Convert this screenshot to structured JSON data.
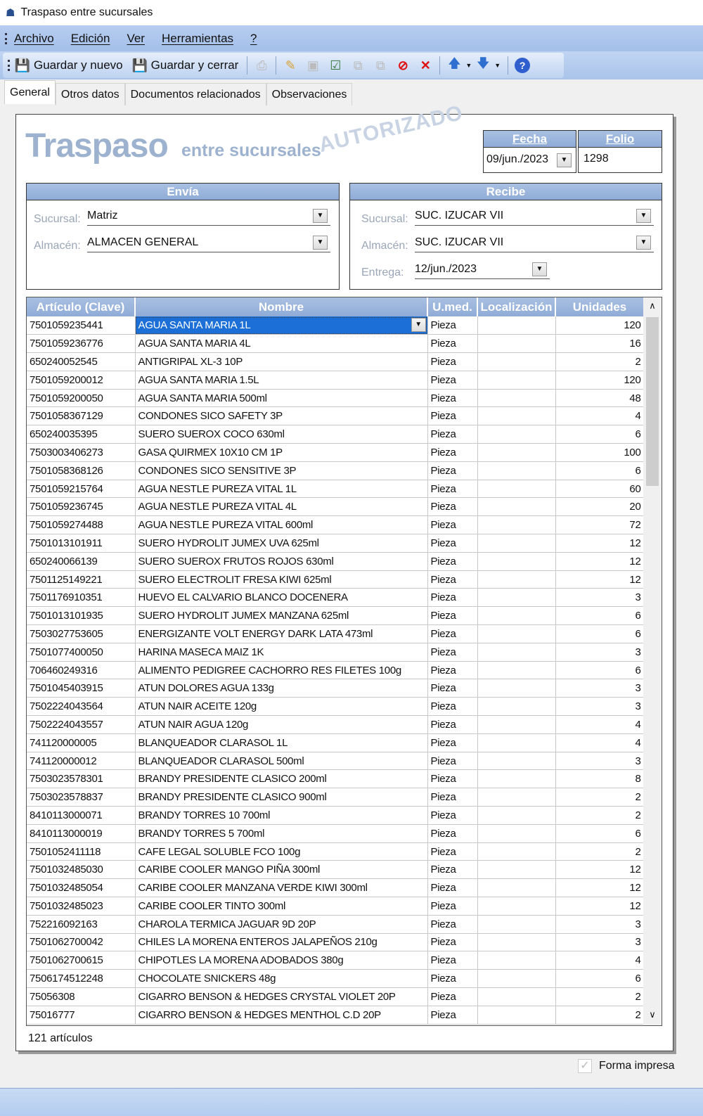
{
  "window": {
    "title": "Traspaso entre sucursales",
    "icon": "house-icon"
  },
  "menu": [
    "Archivo",
    "Edición",
    "Ver",
    "Herramientas",
    "?"
  ],
  "toolbar": {
    "save_new": "Guardar y nuevo",
    "save_close": "Guardar y cerrar"
  },
  "tabs": [
    "General",
    "Otros datos",
    "Documentos relacionados",
    "Observaciones"
  ],
  "header": {
    "title": "Traspaso",
    "subtitle": "entre sucursales",
    "status": "AUTORIZADO",
    "fecha_label": "Fecha",
    "fecha": "09/jun./2023",
    "folio_label": "Folio",
    "folio": "1298"
  },
  "envia": {
    "title": "Envía",
    "sucursal_label": "Sucursal:",
    "sucursal": "Matriz",
    "almacen_label": "Almacén:",
    "almacen": "ALMACEN GENERAL"
  },
  "recibe": {
    "title": "Recibe",
    "sucursal_label": "Sucursal:",
    "sucursal": "SUC. IZUCAR VII",
    "almacen_label": "Almacén:",
    "almacen": "SUC. IZUCAR VII",
    "entrega_label": "Entrega:",
    "entrega": "12/jun./2023"
  },
  "grid": {
    "columns": [
      "Artículo (Clave)",
      "Nombre",
      "U.med.",
      "Localización",
      "Unidades"
    ],
    "rows": [
      [
        "7501059235441",
        "AGUA SANTA MARIA 1L",
        "Pieza",
        "",
        "120"
      ],
      [
        "7501059236776",
        "AGUA SANTA MARIA 4L",
        "Pieza",
        "",
        "16"
      ],
      [
        "650240052545",
        "ANTIGRIPAL XL-3 10P",
        "Pieza",
        "",
        "2"
      ],
      [
        "7501059200012",
        "AGUA SANTA MARIA 1.5L",
        "Pieza",
        "",
        "120"
      ],
      [
        "7501059200050",
        "AGUA SANTA MARIA 500ml",
        "Pieza",
        "",
        "48"
      ],
      [
        "7501058367129",
        "CONDONES SICO SAFETY 3P",
        "Pieza",
        "",
        "4"
      ],
      [
        "650240035395",
        "SUERO SUEROX COCO 630ml",
        "Pieza",
        "",
        "6"
      ],
      [
        "7503003406273",
        "GASA QUIRMEX 10X10 CM 1P",
        "Pieza",
        "",
        "100"
      ],
      [
        "7501058368126",
        "CONDONES SICO SENSITIVE 3P",
        "Pieza",
        "",
        "6"
      ],
      [
        "7501059215764",
        "AGUA NESTLE PUREZA VITAL 1L",
        "Pieza",
        "",
        "60"
      ],
      [
        "7501059236745",
        "AGUA NESTLE PUREZA VITAL 4L",
        "Pieza",
        "",
        "20"
      ],
      [
        "7501059274488",
        "AGUA NESTLE PUREZA VITAL 600ml",
        "Pieza",
        "",
        "72"
      ],
      [
        "7501013101911",
        "SUERO HYDROLIT JUMEX UVA 625ml",
        "Pieza",
        "",
        "12"
      ],
      [
        "650240066139",
        "SUERO SUEROX FRUTOS ROJOS 630ml",
        "Pieza",
        "",
        "12"
      ],
      [
        "7501125149221",
        "SUERO ELECTROLIT FRESA KIWI 625ml",
        "Pieza",
        "",
        "12"
      ],
      [
        "7501176910351",
        "HUEVO EL CALVARIO BLANCO DOCENERA",
        "Pieza",
        "",
        "3"
      ],
      [
        "7501013101935",
        "SUERO HYDROLIT JUMEX MANZANA 625ml",
        "Pieza",
        "",
        "6"
      ],
      [
        "7503027753605",
        "ENERGIZANTE VOLT ENERGY DARK LATA 473ml",
        "Pieza",
        "",
        "6"
      ],
      [
        "7501077400050",
        "HARINA MASECA MAIZ 1K",
        "Pieza",
        "",
        "3"
      ],
      [
        "706460249316",
        "ALIMENTO PEDIGREE CACHORRO RES FILETES 100g",
        "Pieza",
        "",
        "6"
      ],
      [
        "7501045403915",
        "ATUN DOLORES AGUA 133g",
        "Pieza",
        "",
        "3"
      ],
      [
        "7502224043564",
        "ATUN NAIR ACEITE 120g",
        "Pieza",
        "",
        "3"
      ],
      [
        "7502224043557",
        "ATUN NAIR AGUA 120g",
        "Pieza",
        "",
        "4"
      ],
      [
        "741120000005",
        "BLANQUEADOR CLARASOL 1L",
        "Pieza",
        "",
        "4"
      ],
      [
        "741120000012",
        "BLANQUEADOR CLARASOL 500ml",
        "Pieza",
        "",
        "3"
      ],
      [
        "7503023578301",
        "BRANDY PRESIDENTE CLASICO 200ml",
        "Pieza",
        "",
        "8"
      ],
      [
        "7503023578837",
        "BRANDY PRESIDENTE CLASICO 900ml",
        "Pieza",
        "",
        "2"
      ],
      [
        "8410113000071",
        "BRANDY TORRES 10 700ml",
        "Pieza",
        "",
        "2"
      ],
      [
        "8410113000019",
        "BRANDY TORRES 5 700ml",
        "Pieza",
        "",
        "6"
      ],
      [
        "7501052411118",
        "CAFE LEGAL SOLUBLE FCO 100g",
        "Pieza",
        "",
        "2"
      ],
      [
        "7501032485030",
        "CARIBE COOLER MANGO PIÑA 300ml",
        "Pieza",
        "",
        "12"
      ],
      [
        "7501032485054",
        "CARIBE COOLER MANZANA VERDE KIWI 300ml",
        "Pieza",
        "",
        "12"
      ],
      [
        "7501032485023",
        "CARIBE COOLER TINTO 300ml",
        "Pieza",
        "",
        "12"
      ],
      [
        "752216092163",
        "CHAROLA TERMICA JAGUAR 9D 20P",
        "Pieza",
        "",
        "3"
      ],
      [
        "7501062700042",
        "CHILES LA MORENA ENTEROS JALAPEÑOS 210g",
        "Pieza",
        "",
        "3"
      ],
      [
        "7501062700615",
        "CHIPOTLES LA MORENA ADOBADOS 380g",
        "Pieza",
        "",
        "4"
      ],
      [
        "7506174512248",
        "CHOCOLATE SNICKERS 48g",
        "Pieza",
        "",
        "6"
      ],
      [
        "75056308",
        "CIGARRO BENSON & HEDGES CRYSTAL VIOLET 20P",
        "Pieza",
        "",
        "2"
      ],
      [
        "75016777",
        "CIGARRO BENSON & HEDGES MENTHOL C.D 20P",
        "Pieza",
        "",
        "2"
      ]
    ]
  },
  "footer": {
    "count": "121 artículos",
    "forma_impresa": "Forma impresa",
    "forma_impresa_checked": true
  },
  "colors": {
    "header_blue": "#8fabd6",
    "selection": "#1c6fd6",
    "menubar": "#a4bfe9"
  }
}
